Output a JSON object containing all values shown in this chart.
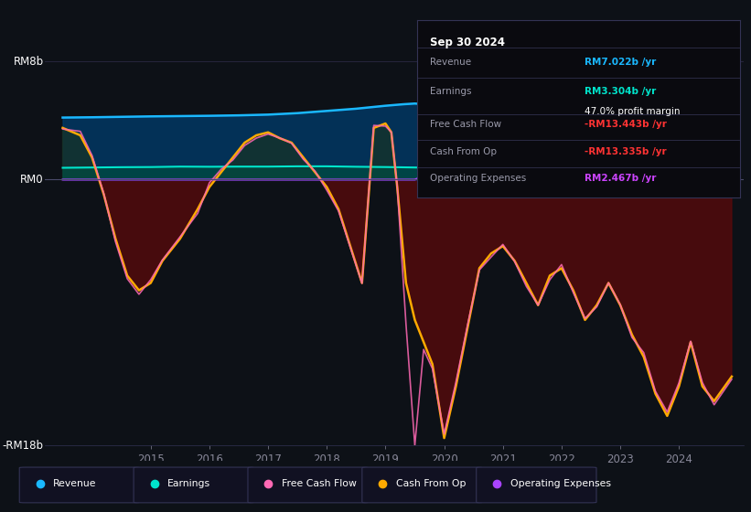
{
  "background_color": "#0d1117",
  "plot_bg_color": "#0d1117",
  "y_label_top": "RM8b",
  "y_label_bottom": "-RM18b",
  "y_label_zero": "RM0",
  "y_max": 8,
  "y_min": -18,
  "x_ticks": [
    2015,
    2016,
    2017,
    2018,
    2019,
    2020,
    2021,
    2022,
    2023,
    2024
  ],
  "info_box": {
    "date": "Sep 30 2024",
    "revenue_label": "Revenue",
    "revenue_value": "RM7.022b /yr",
    "revenue_color": "#1ab8ff",
    "earnings_label": "Earnings",
    "earnings_value": "RM3.304b /yr",
    "earnings_color": "#00e5cc",
    "profit_margin": "47.0% profit margin",
    "profit_margin_color": "#ffffff",
    "fcf_label": "Free Cash Flow",
    "fcf_value": "-RM13.443b /yr",
    "fcf_color": "#ff3333",
    "cashop_label": "Cash From Op",
    "cashop_value": "-RM13.335b /yr",
    "cashop_color": "#ff3333",
    "opex_label": "Operating Expenses",
    "opex_value": "RM2.467b /yr",
    "opex_color": "#cc44ff"
  },
  "legend": [
    {
      "label": "Revenue",
      "color": "#1ab8ff"
    },
    {
      "label": "Earnings",
      "color": "#00e5cc"
    },
    {
      "label": "Free Cash Flow",
      "color": "#ff69b4"
    },
    {
      "label": "Cash From Op",
      "color": "#ffaa00"
    },
    {
      "label": "Operating Expenses",
      "color": "#aa44ff"
    }
  ],
  "revenue_color": "#1ab8ff",
  "revenue_fill_color": "#003d6e",
  "earnings_color": "#00e5cc",
  "earnings_fill_color": "#004d40",
  "cashop_color": "#ffaa00",
  "cashop_fill_neg_color": "#5c0a0a",
  "cashop_fill_pos_color": "#1a3320",
  "opex_color": "#aa44ff",
  "opex_fill_color": "#3d1166",
  "fcf_color": "#ff69b4"
}
